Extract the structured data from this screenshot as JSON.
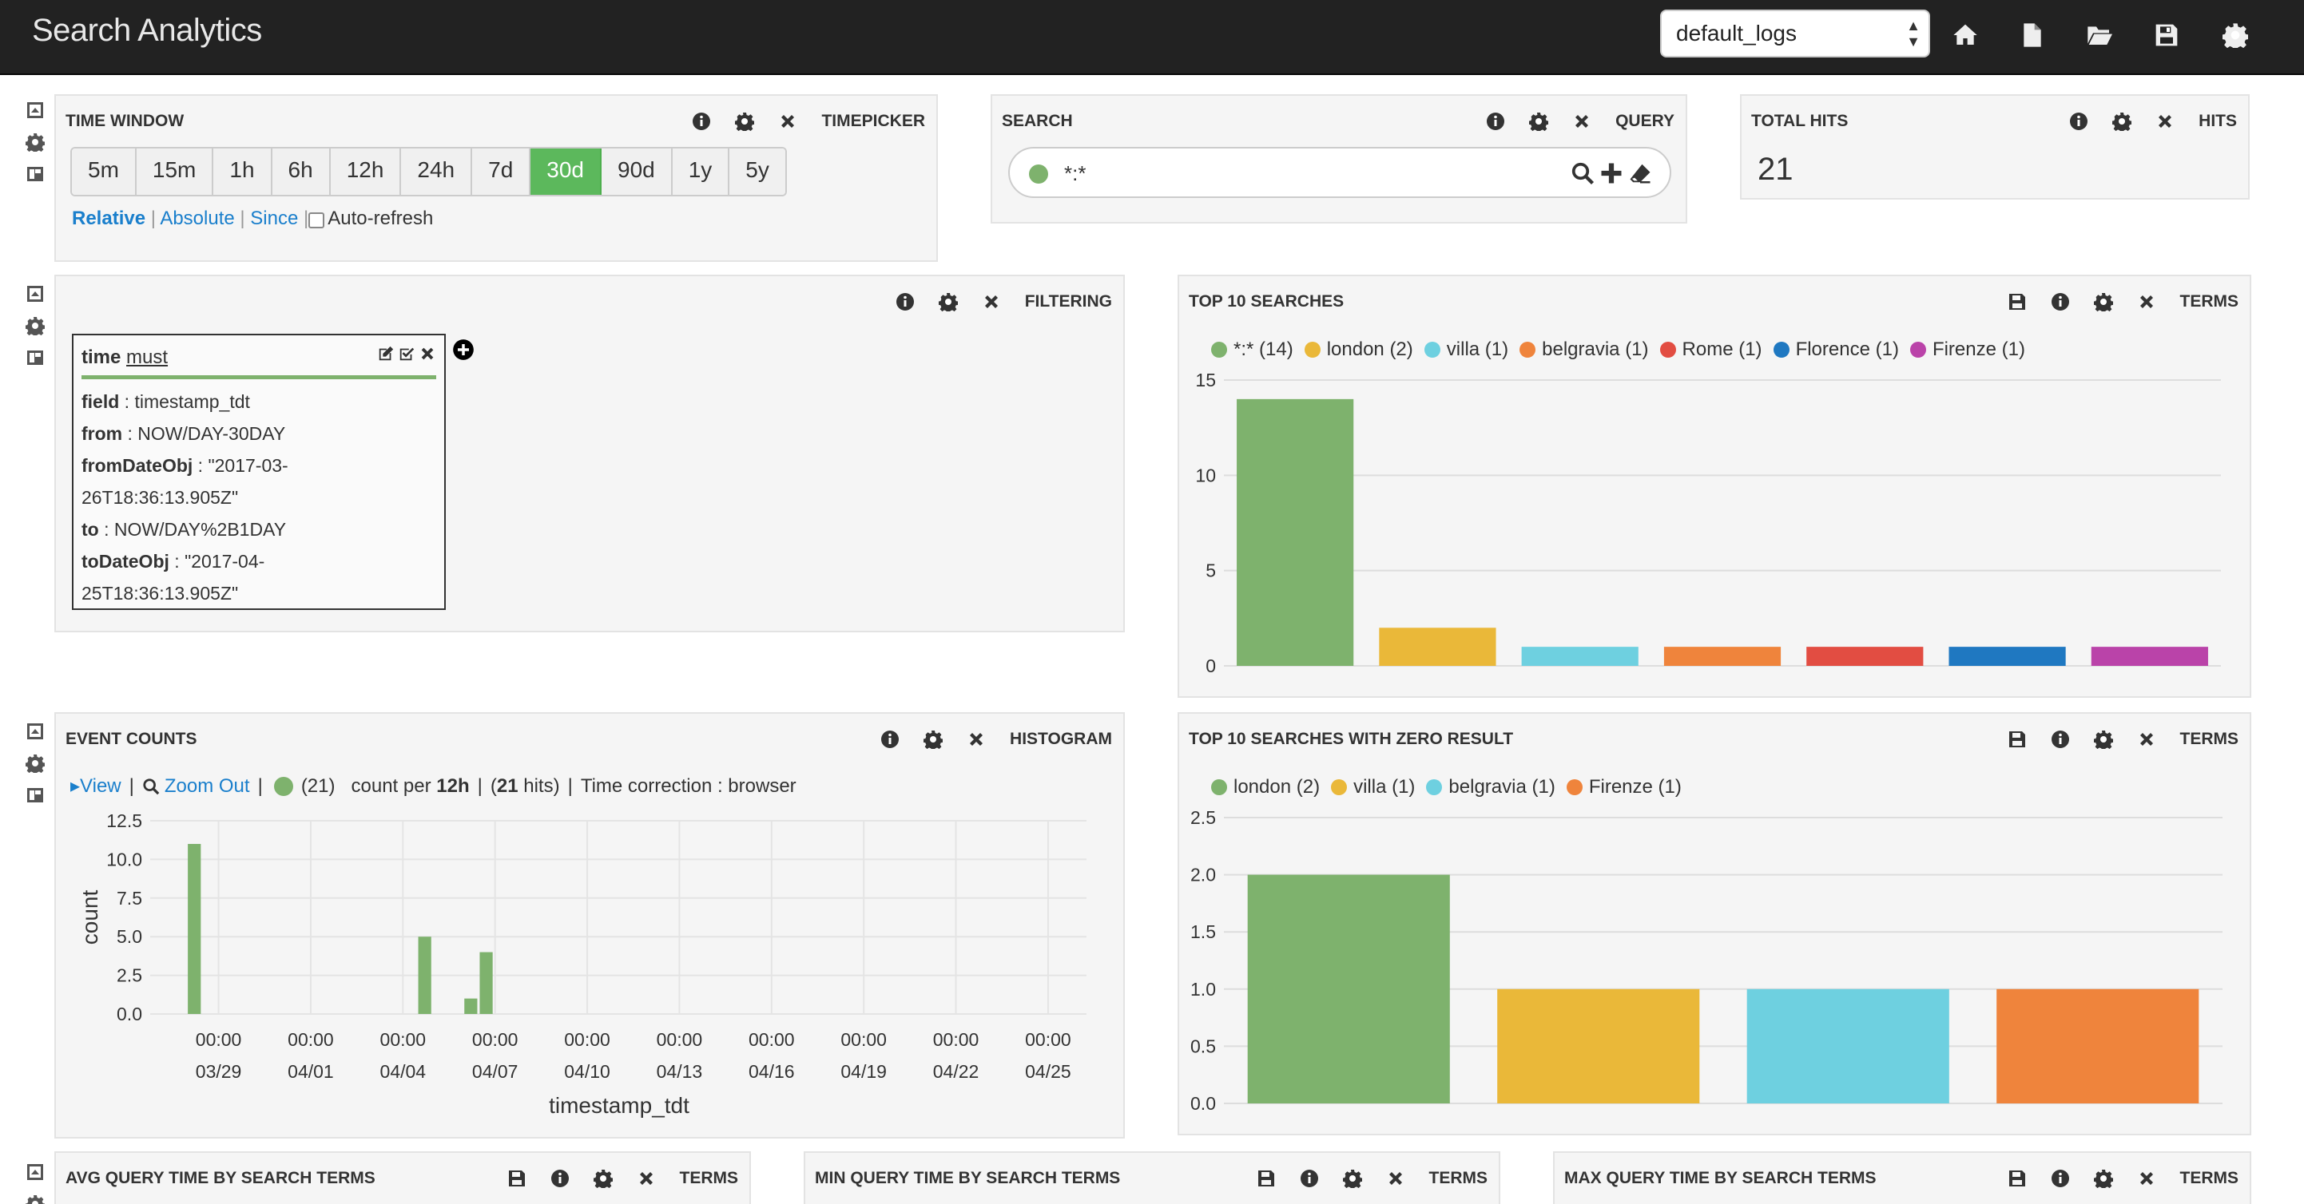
{
  "app": {
    "title": "Search Analytics",
    "dashboard_select": "default_logs"
  },
  "icons": {
    "toolbar": [
      "home-icon",
      "new-file-icon",
      "open-folder-icon",
      "save-icon",
      "gear-icon"
    ],
    "row_controls": [
      "collapse-icon",
      "gear-icon",
      "add-panel-icon"
    ],
    "panel_controls": [
      "save-icon",
      "info-icon",
      "gear-icon",
      "close-icon"
    ]
  },
  "colors": {
    "accent": "#5cb85c",
    "link": "#1a7fcc",
    "topbar": "#222222"
  },
  "time_window": {
    "title": "TIME WINDOW",
    "type": "TIMEPICKER",
    "buttons": [
      "5m",
      "15m",
      "1h",
      "6h",
      "12h",
      "24h",
      "7d",
      "30d",
      "90d",
      "1y",
      "5y"
    ],
    "active": "30d",
    "links": [
      "Relative",
      "Absolute",
      "Since"
    ],
    "auto_refresh": "Auto-refresh"
  },
  "search": {
    "title": "SEARCH",
    "type": "QUERY",
    "query": "*:*"
  },
  "hits": {
    "title": "TOTAL HITS",
    "type": "HITS",
    "value": "21"
  },
  "filtering": {
    "type": "FILTERING",
    "filter": {
      "field_name": "time",
      "mode": "must",
      "lines": [
        {
          "k": "field",
          "v": "timestamp_tdt"
        },
        {
          "k": "from",
          "v": "NOW/DAY-30DAY"
        },
        {
          "k": "fromDateObj",
          "v": "\"2017-03-"
        },
        {
          "k": "",
          "v": "26T18:36:13.905Z\""
        },
        {
          "k": "to",
          "v": "NOW/DAY%2B1DAY"
        },
        {
          "k": "toDateObj",
          "v": "\"2017-04-"
        },
        {
          "k": "",
          "v": "25T18:36:13.905Z\""
        }
      ]
    }
  },
  "top_searches": {
    "title": "TOP 10 SEARCHES",
    "type": "TERMS",
    "chart_data": {
      "type": "bar",
      "categories": [
        "*:*",
        "london",
        "villa",
        "belgravia",
        "Rome",
        "Florence",
        "Firenze"
      ],
      "legend": [
        "*:* (14)",
        "london (2)",
        "villa (1)",
        "belgravia (1)",
        "Rome (1)",
        "Florence (1)",
        "Firenze (1)"
      ],
      "values": [
        14,
        2,
        1,
        1,
        1,
        1,
        1
      ],
      "colors": [
        "#7eb26d",
        "#eab839",
        "#6ed0e0",
        "#ef843c",
        "#e24d42",
        "#1f78c1",
        "#ba43a9"
      ],
      "ylim": [
        0,
        15
      ],
      "yticks": [
        "0",
        "5",
        "10",
        "15"
      ],
      "grid": true,
      "legend_position": "top-left"
    }
  },
  "zero_result": {
    "title": "TOP 10 SEARCHES WITH ZERO RESULT",
    "type": "TERMS",
    "chart_data": {
      "type": "bar",
      "categories": [
        "london",
        "villa",
        "belgravia",
        "Firenze"
      ],
      "legend": [
        "london (2)",
        "villa (1)",
        "belgravia (1)",
        "Firenze (1)"
      ],
      "values": [
        2,
        1,
        1,
        1
      ],
      "colors": [
        "#7eb26d",
        "#eab839",
        "#6ed0e0",
        "#ef843c"
      ],
      "ylim": [
        0,
        2.5
      ],
      "yticks": [
        "0.0",
        "0.5",
        "1.0",
        "1.5",
        "2.0",
        "2.5"
      ],
      "grid": true,
      "legend_position": "top-left"
    }
  },
  "event_counts": {
    "title": "EVENT COUNTS",
    "type": "HISTOGRAM",
    "view_label": "View",
    "zoom_label": "Zoom Out",
    "series_count": "(21)",
    "interval_pre": "count per",
    "interval": "12h",
    "hits_pre": "(",
    "hits": "21",
    "hits_post": "hits)",
    "tz": "Time correction : browser",
    "chart_data": {
      "type": "bar",
      "x": [
        "2017-03-28T00:00",
        "2017-04-04T12:00",
        "2017-04-06T00:00",
        "2017-04-06T12:00"
      ],
      "values": [
        11,
        5,
        1,
        4
      ],
      "ylim": [
        0,
        12.5
      ],
      "yticks": [
        "0.0",
        "2.5",
        "5.0",
        "7.5",
        "10.0",
        "12.5"
      ],
      "xticks": [
        {
          "t": "00:00",
          "d": "03/29"
        },
        {
          "t": "00:00",
          "d": "04/01"
        },
        {
          "t": "00:00",
          "d": "04/04"
        },
        {
          "t": "00:00",
          "d": "04/07"
        },
        {
          "t": "00:00",
          "d": "04/10"
        },
        {
          "t": "00:00",
          "d": "04/13"
        },
        {
          "t": "00:00",
          "d": "04/16"
        },
        {
          "t": "00:00",
          "d": "04/19"
        },
        {
          "t": "00:00",
          "d": "04/22"
        },
        {
          "t": "00:00",
          "d": "04/25"
        }
      ],
      "xlabel": "timestamp_tdt",
      "ylabel": "count",
      "color": "#7eb26d",
      "grid": true
    }
  },
  "bottom_panels": [
    {
      "title": "AVG QUERY TIME BY SEARCH TERMS",
      "type": "TERMS"
    },
    {
      "title": "MIN QUERY TIME BY SEARCH TERMS",
      "type": "TERMS"
    },
    {
      "title": "MAX QUERY TIME BY SEARCH TERMS",
      "type": "TERMS"
    }
  ]
}
